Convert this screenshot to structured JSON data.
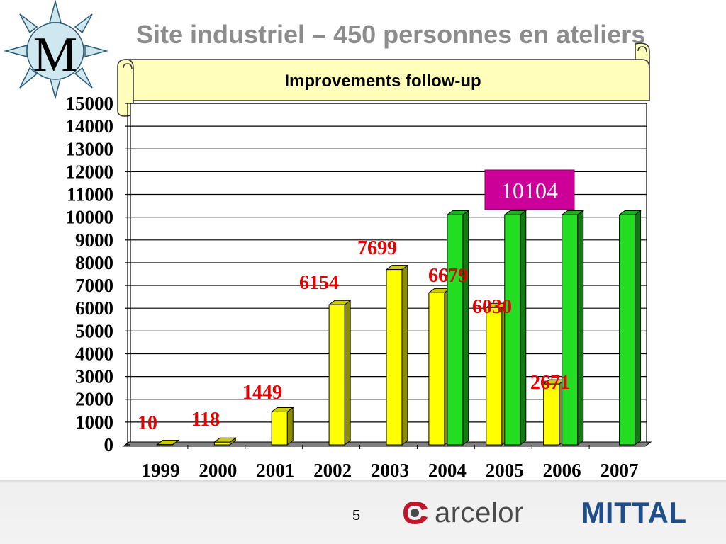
{
  "header": {
    "title": "Site industriel – 450 personnes en ateliers",
    "logo_letter": "M",
    "banner": "Improvements follow-up"
  },
  "footer": {
    "page_number": "5",
    "logo_left": "arcelor",
    "logo_right": "MITTAL"
  },
  "colors": {
    "yellow_bar": "#ffff00",
    "green_bar": "#22dd22",
    "value_label": "#e60000",
    "target_badge": "#cc0099",
    "banner_fill": "#ffffbb"
  },
  "chart_data": {
    "type": "bar",
    "categories": [
      "1999",
      "2000",
      "2001",
      "2002",
      "2003",
      "2004",
      "2005",
      "2006",
      "2007"
    ],
    "series": [
      {
        "color": "#ffff00",
        "values": [
          10,
          118,
          1449,
          6154,
          7699,
          6679,
          6030,
          2671,
          null
        ]
      },
      {
        "color": "#22dd22",
        "values": [
          null,
          null,
          null,
          null,
          null,
          10104,
          10104,
          10104,
          10104
        ]
      }
    ],
    "data_labels": [
      "10",
      "118",
      "1449",
      "6154",
      "7699",
      "6679",
      "6030",
      "2671"
    ],
    "target_label": "10104",
    "ylim": [
      0,
      15000
    ],
    "yticks": [
      "0",
      "1000",
      "2000",
      "3000",
      "4000",
      "5000",
      "6000",
      "7000",
      "8000",
      "9000",
      "10000",
      "11000",
      "12000",
      "13000",
      "14000",
      "15000"
    ],
    "grid": true,
    "three_d": true
  }
}
